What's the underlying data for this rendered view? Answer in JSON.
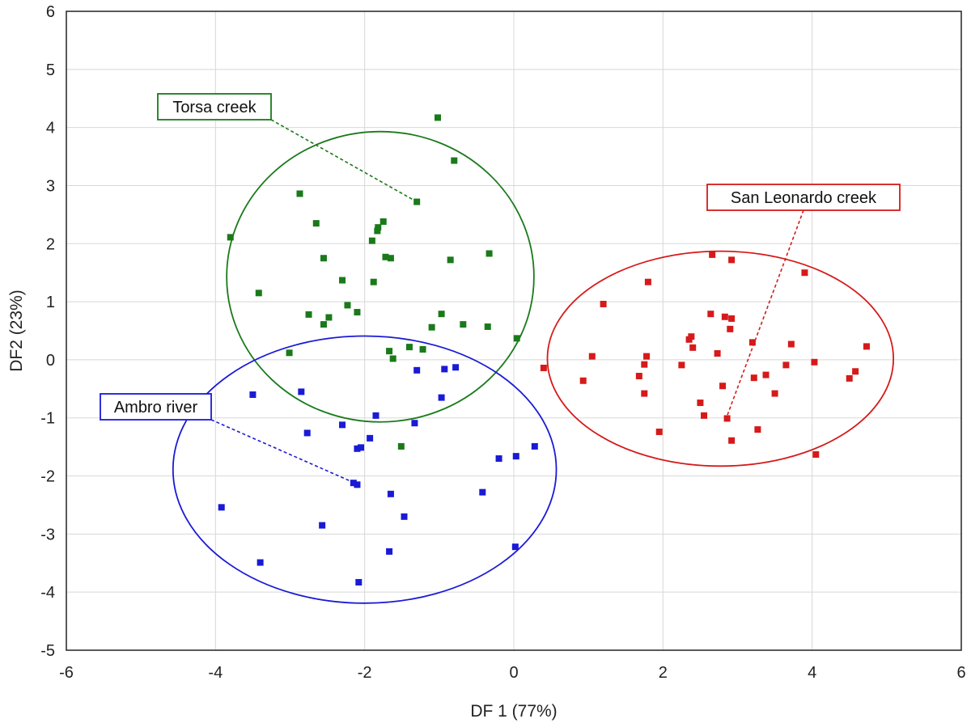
{
  "chart_data": {
    "type": "scatter",
    "title": "",
    "xlabel": "DF 1 (77%)",
    "ylabel": "DF2 (23%)",
    "xlim": [
      -6,
      6
    ],
    "ylim": [
      -5,
      6
    ],
    "xticks": [
      -6,
      -4,
      -2,
      0,
      2,
      4,
      6
    ],
    "yticks": [
      -5,
      -4,
      -3,
      -2,
      -1,
      0,
      1,
      2,
      3,
      4,
      5,
      6
    ],
    "grid": true,
    "series": [
      {
        "name": "Torsa creek",
        "color": "#1a7a1a",
        "ellipse": {
          "cx": -1.79,
          "cy": 1.43,
          "rx": 2.06,
          "ry": 2.5
        },
        "label_anchor": [
          -1.3,
          2.72
        ],
        "points": [
          [
            -1.02,
            4.17
          ],
          [
            -0.8,
            3.43
          ],
          [
            -1.3,
            2.72
          ],
          [
            -2.87,
            2.86
          ],
          [
            -3.8,
            2.11
          ],
          [
            -2.65,
            2.35
          ],
          [
            -1.75,
            2.38
          ],
          [
            -1.82,
            2.28
          ],
          [
            -1.83,
            2.22
          ],
          [
            -1.9,
            2.05
          ],
          [
            -2.55,
            1.75
          ],
          [
            -1.72,
            1.77
          ],
          [
            -1.65,
            1.75
          ],
          [
            -0.85,
            1.72
          ],
          [
            -0.33,
            1.83
          ],
          [
            -3.42,
            1.15
          ],
          [
            -2.3,
            1.37
          ],
          [
            -1.88,
            1.34
          ],
          [
            -2.75,
            0.78
          ],
          [
            -2.48,
            0.73
          ],
          [
            -2.55,
            0.61
          ],
          [
            -2.23,
            0.94
          ],
          [
            -2.1,
            0.82
          ],
          [
            -0.97,
            0.79
          ],
          [
            -0.68,
            0.61
          ],
          [
            -0.35,
            0.57
          ],
          [
            -1.1,
            0.56
          ],
          [
            -3.01,
            0.12
          ],
          [
            -1.67,
            0.15
          ],
          [
            -1.4,
            0.22
          ],
          [
            -1.22,
            0.18
          ],
          [
            -1.62,
            0.02
          ],
          [
            0.04,
            0.37
          ],
          [
            -1.51,
            -1.49
          ]
        ]
      },
      {
        "name": "Ambro river",
        "color": "#1a1ad6",
        "ellipse": {
          "cx": -2.0,
          "cy": -1.89,
          "rx": 2.57,
          "ry": 2.3
        },
        "label_anchor": [
          -2.1,
          -2.14
        ],
        "points": [
          [
            -3.5,
            -0.6
          ],
          [
            -2.85,
            -0.55
          ],
          [
            -1.3,
            -0.18
          ],
          [
            -0.93,
            -0.16
          ],
          [
            -0.78,
            -0.13
          ],
          [
            -0.97,
            -0.65
          ],
          [
            -1.85,
            -0.96
          ],
          [
            -2.3,
            -1.12
          ],
          [
            -1.33,
            -1.09
          ],
          [
            -2.77,
            -1.26
          ],
          [
            -1.93,
            -1.35
          ],
          [
            -2.05,
            -1.51
          ],
          [
            -2.1,
            -1.53
          ],
          [
            0.28,
            -1.49
          ],
          [
            0.03,
            -1.66
          ],
          [
            -0.2,
            -1.7
          ],
          [
            -2.15,
            -2.12
          ],
          [
            -2.1,
            -2.15
          ],
          [
            -1.65,
            -2.31
          ],
          [
            -0.42,
            -2.28
          ],
          [
            -1.47,
            -2.7
          ],
          [
            -3.92,
            -2.54
          ],
          [
            -2.57,
            -2.85
          ],
          [
            -1.67,
            -3.3
          ],
          [
            0.02,
            -3.22
          ],
          [
            -3.4,
            -3.49
          ],
          [
            -2.08,
            -3.83
          ]
        ]
      },
      {
        "name": "San Leonardo creek",
        "color": "#d61a1a",
        "ellipse": {
          "cx": 2.77,
          "cy": 0.02,
          "rx": 2.32,
          "ry": 1.85
        },
        "label_anchor": [
          2.85,
          -1.0
        ],
        "points": [
          [
            2.66,
            1.81
          ],
          [
            2.92,
            1.72
          ],
          [
            1.8,
            1.34
          ],
          [
            3.9,
            1.5
          ],
          [
            1.2,
            0.96
          ],
          [
            2.64,
            0.79
          ],
          [
            2.83,
            0.74
          ],
          [
            2.92,
            0.71
          ],
          [
            2.9,
            0.53
          ],
          [
            2.38,
            0.4
          ],
          [
            2.35,
            0.35
          ],
          [
            3.2,
            0.3
          ],
          [
            3.72,
            0.27
          ],
          [
            4.73,
            0.23
          ],
          [
            2.4,
            0.21
          ],
          [
            2.73,
            0.11
          ],
          [
            1.05,
            0.06
          ],
          [
            1.78,
            0.06
          ],
          [
            1.75,
            -0.08
          ],
          [
            2.25,
            -0.09
          ],
          [
            3.65,
            -0.09
          ],
          [
            4.03,
            -0.04
          ],
          [
            4.58,
            -0.2
          ],
          [
            0.4,
            -0.14
          ],
          [
            1.68,
            -0.28
          ],
          [
            3.38,
            -0.26
          ],
          [
            3.22,
            -0.31
          ],
          [
            4.5,
            -0.32
          ],
          [
            0.93,
            -0.36
          ],
          [
            2.8,
            -0.45
          ],
          [
            1.75,
            -0.58
          ],
          [
            3.5,
            -0.58
          ],
          [
            2.5,
            -0.74
          ],
          [
            2.55,
            -0.96
          ],
          [
            2.86,
            -1.01
          ],
          [
            3.27,
            -1.2
          ],
          [
            1.95,
            -1.24
          ],
          [
            2.92,
            -1.39
          ],
          [
            4.05,
            -1.63
          ]
        ]
      }
    ]
  }
}
